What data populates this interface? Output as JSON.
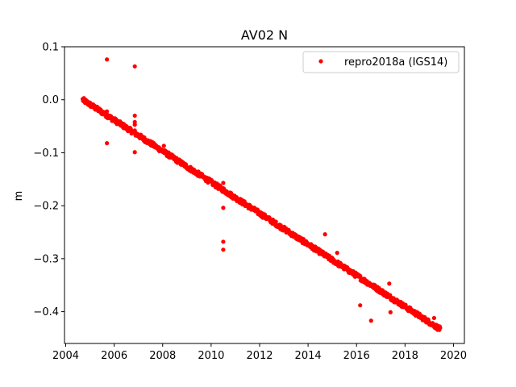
{
  "chart_data": {
    "type": "scatter",
    "title": "AV02 N",
    "xlabel": "",
    "ylabel": "m",
    "xlim": [
      2003.95,
      2020.45
    ],
    "ylim": [
      -0.46,
      0.1
    ],
    "xticks": [
      2004,
      2006,
      2008,
      2010,
      2012,
      2014,
      2016,
      2018,
      2020
    ],
    "yticks": [
      0.1,
      0.0,
      -0.1,
      -0.2,
      -0.3,
      -0.4
    ],
    "ytick_labels": [
      "0.1",
      "0.0",
      "−0.1",
      "−0.2",
      "−0.3",
      "−0.4"
    ],
    "grid": false,
    "legend_position": "top-right",
    "series": [
      {
        "name": "repro2018a (IGS14)",
        "color": "#ff0000",
        "marker": "circle",
        "trend": {
          "x_start": 2004.7,
          "y_start": 0.0,
          "x_end": 2019.45,
          "y_end": -0.433
        },
        "outliers": [
          [
            2005.7,
            0.076
          ],
          [
            2005.7,
            -0.082
          ],
          [
            2005.7,
            -0.022
          ],
          [
            2006.85,
            0.063
          ],
          [
            2006.85,
            -0.03
          ],
          [
            2006.85,
            -0.042
          ],
          [
            2006.85,
            -0.047
          ],
          [
            2006.85,
            -0.099
          ],
          [
            2006.85,
            -0.058
          ],
          [
            2008.05,
            -0.087
          ],
          [
            2010.5,
            -0.157
          ],
          [
            2010.5,
            -0.172
          ],
          [
            2010.5,
            -0.204
          ],
          [
            2010.5,
            -0.268
          ],
          [
            2010.5,
            -0.283
          ],
          [
            2014.7,
            -0.254
          ],
          [
            2015.2,
            -0.289
          ],
          [
            2016.15,
            -0.388
          ],
          [
            2016.6,
            -0.417
          ],
          [
            2017.35,
            -0.347
          ],
          [
            2017.4,
            -0.401
          ],
          [
            2019.2,
            -0.412
          ]
        ]
      }
    ]
  }
}
